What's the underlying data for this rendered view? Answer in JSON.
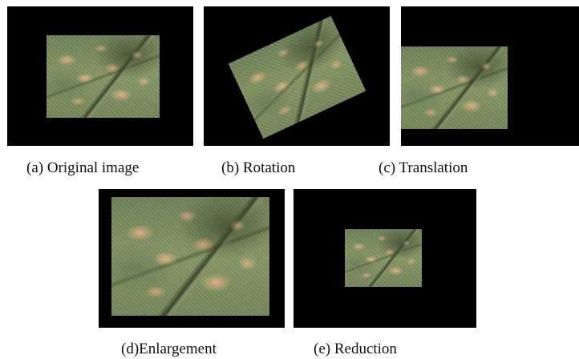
{
  "figure": {
    "panels": [
      {
        "id": "a",
        "caption": "(a) Original image"
      },
      {
        "id": "b",
        "caption": "(b) Rotation"
      },
      {
        "id": "c",
        "caption": "(c) Translation"
      },
      {
        "id": "d",
        "caption": "(d)Enlargement"
      },
      {
        "id": "e",
        "caption": "(e) Reduction"
      }
    ]
  },
  "colors": {
    "background": "#000000",
    "leaf_green": "#7d8e5e",
    "lesion_tan": "#dcb284"
  }
}
